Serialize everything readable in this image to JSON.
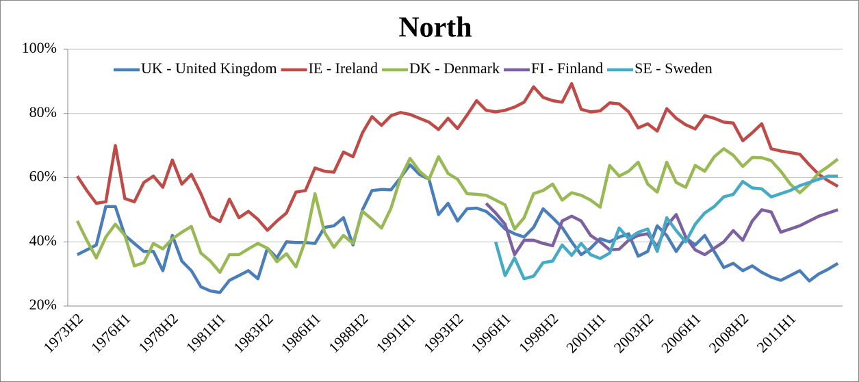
{
  "chart_data": {
    "type": "line",
    "title": "North",
    "categories": [
      "1973H2",
      null,
      null,
      null,
      null,
      "1976H1",
      null,
      null,
      null,
      null,
      "1978H2",
      null,
      null,
      null,
      null,
      "1981H1",
      null,
      null,
      null,
      null,
      "1983H2",
      null,
      null,
      null,
      null,
      "1986H1",
      null,
      null,
      null,
      null,
      "1988H2",
      null,
      null,
      null,
      null,
      "1991H1",
      null,
      null,
      null,
      null,
      "1993H2",
      null,
      null,
      null,
      null,
      "1996H1",
      null,
      null,
      null,
      null,
      "1998H2",
      null,
      null,
      null,
      null,
      "2001H1",
      null,
      null,
      null,
      null,
      "2003H2",
      null,
      null,
      null,
      null,
      "2006H1",
      null,
      null,
      null,
      null,
      "2008H2",
      null,
      null,
      null,
      null,
      "2011H1",
      null,
      null,
      null,
      null,
      null
    ],
    "series": [
      {
        "name": "UK - United Kingdom",
        "color": "#4a7ebb",
        "values": [
          36,
          37.5,
          39,
          51,
          51,
          42,
          39.5,
          37,
          37,
          31,
          42,
          34,
          31,
          26,
          24.7,
          24.2,
          28,
          29.5,
          31,
          28.5,
          38,
          35,
          40,
          39.8,
          39.8,
          39.5,
          44.5,
          45,
          47.5,
          39,
          50,
          56,
          56.3,
          56.2,
          60,
          64,
          61,
          59.5,
          48.5,
          52,
          46.5,
          50.3,
          50.5,
          49.5,
          47,
          44,
          42.5,
          41.5,
          44.5,
          50.3,
          47.5,
          44.5,
          40,
          36,
          38,
          41,
          40,
          41.5,
          42.5,
          35.5,
          37,
          45,
          42,
          37,
          41.3,
          39,
          42,
          37,
          32,
          33.3,
          31,
          32.5,
          30.5,
          29,
          28,
          29.5,
          31,
          27.8,
          30,
          31.5,
          33.3
        ]
      },
      {
        "name": "IE - Ireland",
        "color": "#be4b48",
        "values": [
          60.5,
          56,
          52,
          52.5,
          70,
          53.5,
          52.5,
          58.5,
          60.5,
          57,
          65.5,
          58,
          61,
          55,
          48,
          46.3,
          53.3,
          47.5,
          49.5,
          47,
          43.6,
          46.5,
          49,
          55.5,
          56,
          63,
          62,
          61.7,
          68,
          66.5,
          74,
          79,
          76.3,
          79.3,
          80.3,
          79.7,
          78.5,
          77.3,
          75,
          78.5,
          75.3,
          79.5,
          84,
          81,
          80.5,
          81,
          82,
          83.5,
          88.3,
          85,
          84,
          83.5,
          89.3,
          81.3,
          80.5,
          80.8,
          83.3,
          83,
          80.5,
          75.5,
          76.8,
          74.5,
          81.5,
          78.5,
          76.5,
          75.2,
          79.3,
          78.5,
          77.3,
          77,
          71.5,
          74,
          76.8,
          69,
          68.3,
          67.8,
          67.3,
          64,
          61,
          59,
          57.3
        ]
      },
      {
        "name": "DK - Denmark",
        "color": "#98b954",
        "values": [
          46.5,
          40.5,
          35,
          41.5,
          45.5,
          42,
          32.5,
          33.5,
          39.5,
          37.8,
          41,
          43,
          44.8,
          36.5,
          34,
          30.5,
          36,
          36,
          37.8,
          39.5,
          38,
          33.8,
          36.3,
          32.2,
          40.5,
          55,
          43,
          38.3,
          42,
          39.5,
          49.5,
          47,
          44.3,
          50.5,
          60,
          66,
          62,
          59.5,
          66.5,
          61.3,
          59.5,
          55,
          54.8,
          54.5,
          53,
          51.5,
          44,
          47.5,
          55,
          56,
          58,
          53,
          55.3,
          54.5,
          53,
          50.8,
          63.8,
          60.5,
          62,
          64.8,
          58,
          55.5,
          64.8,
          58.5,
          57,
          63.8,
          62,
          66.5,
          69,
          67,
          63.5,
          66.3,
          66.2,
          65.3,
          62,
          58,
          55.3,
          58,
          61.5,
          63.5,
          65.8
        ]
      },
      {
        "name": "FI - Finland",
        "color": "#7d60a0",
        "values": [
          null,
          null,
          null,
          null,
          null,
          null,
          null,
          null,
          null,
          null,
          null,
          null,
          null,
          null,
          null,
          null,
          null,
          null,
          null,
          null,
          null,
          null,
          null,
          null,
          null,
          null,
          null,
          null,
          null,
          null,
          null,
          null,
          null,
          null,
          null,
          null,
          null,
          null,
          null,
          null,
          null,
          null,
          null,
          52,
          49,
          45.5,
          36,
          40.5,
          40.5,
          39.5,
          38.8,
          46.5,
          48,
          46.5,
          42,
          40,
          37.5,
          37.7,
          40.5,
          42,
          42.5,
          38.5,
          45,
          48.5,
          41.5,
          37.5,
          36,
          38,
          40,
          43.5,
          40.5,
          46.5,
          50,
          49.3,
          43,
          44,
          45,
          46.5,
          48,
          49,
          50
        ]
      },
      {
        "name": "SE - Sweden",
        "color": "#46aac5",
        "values": [
          null,
          null,
          null,
          null,
          null,
          null,
          null,
          null,
          null,
          null,
          null,
          null,
          null,
          null,
          null,
          null,
          null,
          null,
          null,
          null,
          null,
          null,
          null,
          null,
          null,
          null,
          null,
          null,
          null,
          null,
          null,
          null,
          null,
          null,
          null,
          null,
          null,
          null,
          null,
          null,
          null,
          null,
          null,
          null,
          40,
          29.5,
          35,
          28.5,
          29.3,
          33.5,
          34,
          39,
          35.8,
          39.5,
          36,
          34.8,
          36.5,
          44.3,
          41,
          43,
          44,
          37,
          47.5,
          43.5,
          40,
          45.5,
          49,
          51,
          54,
          54.8,
          58.8,
          56.8,
          56.5,
          54,
          55,
          56,
          57.5,
          58.5,
          59.5,
          60.5,
          60.5
        ]
      }
    ],
    "ylim": [
      20,
      100
    ],
    "yticks": [
      {
        "value": 20,
        "label": "20%"
      },
      {
        "value": 40,
        "label": "40%"
      },
      {
        "value": 60,
        "label": "60%"
      },
      {
        "value": 80,
        "label": "80%"
      },
      {
        "value": 100,
        "label": "100%"
      }
    ],
    "grid": true,
    "legend": "top"
  }
}
